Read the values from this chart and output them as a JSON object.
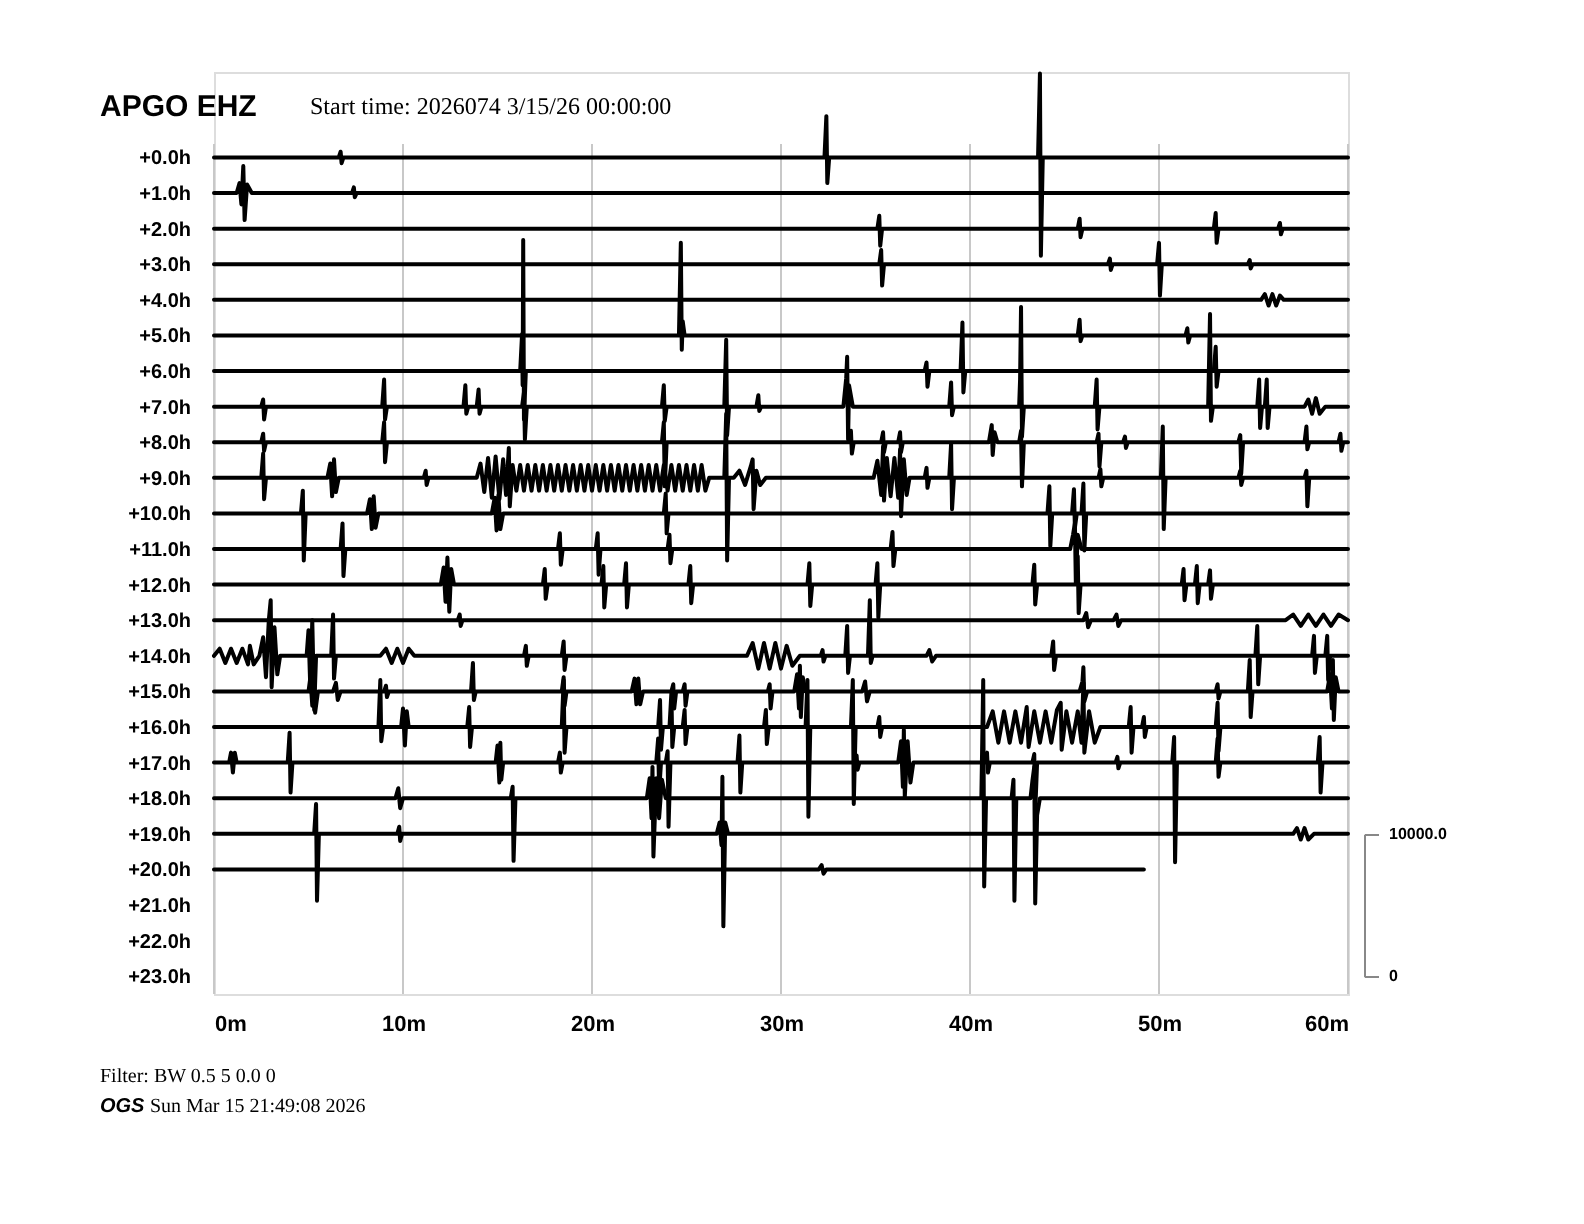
{
  "chart_data": {
    "type": "line",
    "title": "APGO EHZ",
    "subtitle": "Start time: 2026074  3/15/26 00:00:00",
    "annotations": [
      "Filter: BW 0.5 5 0.0 0",
      "OGS",
      "Sun Mar 15 21:49:08 2026"
    ],
    "xlim": [
      0,
      60
    ],
    "xticks": [
      {
        "value": 0,
        "label": "0m"
      },
      {
        "value": 10,
        "label": "10m"
      },
      {
        "value": 20,
        "label": "20m"
      },
      {
        "value": 30,
        "label": "30m"
      },
      {
        "value": 40,
        "label": "40m"
      },
      {
        "value": 50,
        "label": "50m"
      },
      {
        "value": 60,
        "label": "60m"
      }
    ],
    "ylim": [
      23.5,
      -2.4
    ],
    "yticks": [
      {
        "value": 0,
        "label": "+0.0h"
      },
      {
        "value": 1,
        "label": "+1.0h"
      },
      {
        "value": 2,
        "label": "+2.0h"
      },
      {
        "value": 3,
        "label": "+3.0h"
      },
      {
        "value": 4,
        "label": "+4.0h"
      },
      {
        "value": 5,
        "label": "+5.0h"
      },
      {
        "value": 6,
        "label": "+6.0h"
      },
      {
        "value": 7,
        "label": "+7.0h"
      },
      {
        "value": 8,
        "label": "+8.0h"
      },
      {
        "value": 9,
        "label": "+9.0h"
      },
      {
        "value": 10,
        "label": "+10.0h"
      },
      {
        "value": 11,
        "label": "+11.0h"
      },
      {
        "value": 12,
        "label": "+12.0h"
      },
      {
        "value": 13,
        "label": "+13.0h"
      },
      {
        "value": 14,
        "label": "+14.0h"
      },
      {
        "value": 15,
        "label": "+15.0h"
      },
      {
        "value": 16,
        "label": "+16.0h"
      },
      {
        "value": 17,
        "label": "+17.0h"
      },
      {
        "value": 18,
        "label": "+18.0h"
      },
      {
        "value": 19,
        "label": "+19.0h"
      },
      {
        "value": 20,
        "label": "+20.0h"
      },
      {
        "value": 21,
        "label": "+21.0h"
      },
      {
        "value": 22,
        "label": "+22.0h"
      },
      {
        "value": 23,
        "label": "+23.0h"
      }
    ],
    "y2lim": [
      -1250,
      63500
    ],
    "y2ticks": [
      0,
      {
        "value": 10000,
        "label": "10000.0"
      }
    ],
    "grid": "x",
    "series": [
      {
        "axis": "y2",
        "color": "#000000",
        "x": [
          0,
          6.6,
          6.7,
          6.75,
          6.85,
          32.3,
          32.4,
          32.45,
          32.55,
          43.6,
          43.7,
          43.75,
          43.85,
          60
        ],
        "values": [
          57500,
          57500,
          57900,
          57100,
          57500,
          57500,
          60400,
          55700,
          57500,
          57500,
          63400,
          50600,
          57500,
          57500
        ]
      },
      {
        "axis": "y2",
        "color": "#000000",
        "x": [
          0,
          1.2,
          1.35,
          1.45,
          1.55,
          1.62,
          1.75,
          2.0,
          7.3,
          7.4,
          7.45,
          7.55,
          60
        ],
        "values": [
          55000,
          55000,
          55700,
          54200,
          56900,
          53100,
          55600,
          55000,
          55000,
          55400,
          54700,
          55000,
          55000
        ]
      },
      {
        "axis": "y2",
        "color": "#000000",
        "x": [
          0,
          35.1,
          35.2,
          35.25,
          35.35,
          45.7,
          45.8,
          45.85,
          45.95,
          52.9,
          53.0,
          53.05,
          53.15,
          56.3,
          56.4,
          56.45,
          56.55,
          60
        ],
        "values": [
          52500,
          52500,
          53400,
          51300,
          52500,
          52500,
          53200,
          51900,
          52500,
          52500,
          53600,
          51500,
          52500,
          52500,
          52900,
          52100,
          52500,
          52500
        ]
      },
      {
        "axis": "y2",
        "color": "#000000",
        "x": [
          0,
          35.2,
          35.3,
          35.35,
          35.45,
          47.3,
          47.4,
          47.45,
          47.55,
          49.9,
          50.0,
          50.05,
          50.15,
          54.7,
          54.8,
          54.85,
          54.95,
          60
        ],
        "values": [
          50000,
          50000,
          51000,
          48500,
          50000,
          50000,
          50400,
          49600,
          50000,
          50000,
          51500,
          47800,
          50000,
          50000,
          50300,
          49700,
          50000,
          50000
        ]
      },
      {
        "axis": "y2",
        "color": "#000000",
        "x": [
          0,
          55.4,
          55.6,
          55.8,
          56.0,
          56.2,
          56.4,
          56.6,
          60
        ],
        "values": [
          47500,
          47500,
          47900,
          47100,
          47900,
          47100,
          47800,
          47500,
          47500
        ]
      },
      {
        "axis": "y2",
        "color": "#000000",
        "x": [
          0,
          24.6,
          24.7,
          24.75,
          24.8,
          24.9,
          45.7,
          45.8,
          45.85,
          45.95,
          51.4,
          51.5,
          51.55,
          51.65,
          60
        ],
        "values": [
          45000,
          45000,
          51500,
          44000,
          46000,
          45000,
          45000,
          46100,
          44600,
          45000,
          45000,
          45500,
          44500,
          45000,
          45000
        ]
      },
      {
        "axis": "y2",
        "color": "#000000",
        "x": [
          0,
          16.2,
          16.3,
          16.33,
          16.36,
          16.4,
          16.5,
          37.6,
          37.7,
          37.75,
          37.85,
          39.5,
          39.6,
          39.65,
          39.75,
          52.9,
          53.0,
          53.05,
          53.15,
          60
        ],
        "values": [
          42500,
          42500,
          45100,
          41500,
          51700,
          39100,
          42500,
          42500,
          43100,
          41400,
          42500,
          42500,
          45900,
          41000,
          42500,
          42500,
          44200,
          41400,
          42500,
          42500
        ]
      },
      {
        "axis": "y2",
        "color": "#000000",
        "x": [
          0,
          2.5,
          2.6,
          2.65,
          2.75,
          8.9,
          9.0,
          9.05,
          9.15,
          13.2,
          13.3,
          13.35,
          13.45,
          13.9,
          14.0,
          14.05,
          14.15,
          16.3,
          16.4,
          16.45,
          16.55,
          23.7,
          23.8,
          23.85,
          23.95,
          27.0,
          27.1,
          27.15,
          27.25,
          28.7,
          28.8,
          28.85,
          28.95,
          33.3,
          33.45,
          33.5,
          33.55,
          33.6,
          33.8,
          38.9,
          39.0,
          39.05,
          39.15,
          42.6,
          42.65,
          42.7,
          42.75,
          42.85,
          46.6,
          46.7,
          46.75,
          46.85,
          52.6,
          52.7,
          52.75,
          52.85,
          55.2,
          55.3,
          55.35,
          55.45,
          55.6,
          55.7,
          55.75,
          55.85,
          57.7,
          57.9,
          58.1,
          58.3,
          58.5,
          58.8,
          60
        ],
        "values": [
          40000,
          40000,
          40500,
          39100,
          40000,
          40000,
          41900,
          39100,
          40000,
          40000,
          41500,
          39500,
          40000,
          40000,
          41200,
          39500,
          40000,
          40000,
          41000,
          37700,
          40000,
          40000,
          41500,
          39000,
          40000,
          40000,
          44700,
          38000,
          40000,
          40000,
          40800,
          39700,
          40000,
          40000,
          42000,
          43500,
          37700,
          41500,
          40000,
          40000,
          41700,
          39400,
          40000,
          40000,
          41900,
          47000,
          37900,
          40000,
          40000,
          41900,
          38400,
          40000,
          40000,
          46500,
          39000,
          40000,
          40000,
          41900,
          38500,
          40000,
          40000,
          41900,
          38500,
          40000,
          40000,
          40500,
          39500,
          40600,
          39500,
          40000,
          40000
        ]
      },
      {
        "axis": "y2",
        "color": "#000000",
        "x": [
          0,
          2.5,
          2.6,
          2.65,
          2.75,
          8.9,
          9.0,
          9.05,
          9.15,
          23.7,
          23.8,
          23.85,
          23.95,
          33.6,
          33.7,
          33.75,
          33.85,
          35.3,
          35.4,
          35.45,
          35.55,
          36.2,
          36.3,
          36.35,
          36.45,
          41.0,
          41.15,
          41.2,
          41.3,
          41.45,
          42.6,
          42.7,
          42.75,
          42.85,
          46.7,
          46.8,
          46.85,
          46.95,
          48.1,
          48.2,
          48.25,
          48.35,
          54.2,
          54.3,
          54.35,
          54.45,
          57.7,
          57.8,
          57.85,
          57.95,
          59.5,
          59.6,
          59.65,
          59.75,
          60
        ],
        "values": [
          37500,
          37500,
          38100,
          36900,
          37500,
          37500,
          38900,
          36100,
          37500,
          37500,
          38900,
          34400,
          37500,
          37500,
          38300,
          36700,
          37500,
          37500,
          38200,
          36800,
          37500,
          37500,
          38200,
          36800,
          37500,
          37500,
          38700,
          36600,
          38200,
          37500,
          37500,
          38300,
          34400,
          37500,
          37500,
          38100,
          35800,
          37500,
          37500,
          37900,
          37100,
          37500,
          37500,
          38000,
          35300,
          37500,
          37500,
          38600,
          37000,
          37500,
          37500,
          38100,
          36900,
          37500,
          37500
        ]
      },
      {
        "axis": "y2",
        "color": "#000000",
        "x": [
          0,
          2.5,
          2.6,
          2.65,
          2.75,
          6.0,
          6.15,
          6.25,
          6.35,
          6.45,
          6.6,
          11.1,
          11.2,
          11.25,
          11.35,
          13.9,
          14.1,
          14.3,
          14.5,
          14.7,
          14.9,
          15.1,
          15.3,
          15.45,
          15.6,
          15.65,
          15.8,
          16.0,
          16.2,
          16.4,
          16.6,
          16.8,
          17.0,
          17.2,
          17.4,
          17.6,
          17.8,
          18.0,
          18.2,
          18.4,
          18.6,
          18.8,
          19.0,
          19.2,
          19.4,
          19.6,
          19.8,
          20.0,
          20.2,
          20.4,
          20.6,
          20.8,
          21.0,
          21.2,
          21.4,
          21.6,
          21.8,
          22.0,
          22.2,
          22.4,
          22.6,
          22.8,
          23.0,
          23.2,
          23.4,
          23.6,
          23.8,
          24.0,
          24.2,
          24.4,
          24.6,
          24.8,
          25.0,
          25.2,
          25.4,
          25.6,
          25.8,
          26.0,
          26.2,
          27.0,
          27.1,
          27.15,
          27.25,
          27.5,
          27.8,
          28.1,
          28.4,
          28.5,
          28.55,
          28.7,
          28.9,
          29.2,
          34.9,
          35.1,
          35.3,
          35.4,
          35.45,
          35.6,
          35.8,
          36.0,
          36.2,
          36.3,
          36.35,
          36.5,
          36.65,
          36.8,
          37.6,
          37.7,
          37.75,
          37.85,
          38.9,
          39.0,
          39.05,
          39.15,
          46.8,
          46.9,
          46.95,
          47.05,
          50.1,
          50.2,
          50.25,
          50.35,
          54.2,
          54.3,
          54.35,
          54.45,
          57.7,
          57.8,
          57.85,
          57.95,
          60
        ],
        "values": [
          35000,
          35000,
          36700,
          33500,
          35000,
          35000,
          36000,
          33700,
          36300,
          34000,
          35000,
          35000,
          35500,
          34500,
          35000,
          35000,
          36000,
          34000,
          36400,
          33600,
          36500,
          33500,
          36300,
          33800,
          37100,
          33000,
          35900,
          34100,
          35900,
          34100,
          35900,
          34100,
          35900,
          34100,
          35900,
          34100,
          35900,
          34100,
          35900,
          34100,
          35900,
          34100,
          35900,
          34100,
          35900,
          34100,
          35900,
          34100,
          35900,
          34100,
          35900,
          34100,
          35900,
          34100,
          35900,
          34100,
          35900,
          34100,
          35900,
          34100,
          35900,
          34100,
          35900,
          34100,
          35900,
          34100,
          35900,
          34100,
          35900,
          34100,
          35900,
          34100,
          35900,
          34100,
          35900,
          34100,
          35900,
          34100,
          35000,
          35000,
          39500,
          29200,
          35000,
          35000,
          35500,
          34500,
          35800,
          36300,
          32800,
          35500,
          34500,
          35000,
          35000,
          36200,
          33800,
          37200,
          33400,
          36400,
          33700,
          36400,
          33600,
          37000,
          32300,
          36300,
          33800,
          35000,
          35000,
          35700,
          34300,
          35000,
          35000,
          37400,
          32800,
          35000,
          35000,
          35600,
          34400,
          35000,
          35000,
          38600,
          31400,
          35000,
          35000,
          35500,
          34500,
          35000,
          35000,
          35500,
          33000,
          35000,
          35000
        ]
      },
      {
        "axis": "y2",
        "color": "#000000",
        "x": [
          0,
          4.6,
          4.7,
          4.75,
          4.85,
          8.1,
          8.25,
          8.35,
          8.45,
          8.55,
          8.7,
          14.7,
          14.85,
          14.95,
          15.05,
          15.15,
          15.3,
          23.8,
          23.9,
          23.95,
          24.05,
          44.1,
          44.2,
          44.25,
          44.35,
          45.4,
          45.5,
          45.55,
          45.65,
          45.9,
          46.0,
          46.05,
          46.15,
          60
        ],
        "values": [
          32500,
          32500,
          34100,
          29200,
          32500,
          32500,
          33500,
          31400,
          33700,
          31500,
          32500,
          32500,
          33600,
          31300,
          33800,
          31400,
          32500,
          32500,
          33900,
          31100,
          32500,
          32500,
          34400,
          30200,
          32500,
          32500,
          34200,
          31500,
          32500,
          32500,
          34600,
          29900,
          32500,
          32500
        ]
      },
      {
        "axis": "y2",
        "color": "#000000",
        "x": [
          0,
          6.7,
          6.8,
          6.85,
          6.95,
          18.2,
          18.3,
          18.35,
          18.45,
          20.2,
          20.3,
          20.35,
          20.45,
          24.0,
          24.1,
          24.15,
          24.25,
          35.8,
          35.9,
          35.95,
          36.05,
          45.3,
          45.45,
          45.55,
          45.6,
          45.7,
          45.9,
          60
        ],
        "values": [
          30000,
          30000,
          31800,
          28100,
          30000,
          30000,
          31100,
          28900,
          30000,
          30000,
          31100,
          28200,
          30000,
          30000,
          31000,
          29000,
          30000,
          30000,
          31200,
          28800,
          30000,
          30000,
          31000,
          31800,
          27600,
          31000,
          30000,
          30000
        ]
      },
      {
        "axis": "y2",
        "color": "#000000",
        "x": [
          0,
          12.0,
          12.15,
          12.25,
          12.35,
          12.45,
          12.55,
          12.7,
          17.4,
          17.5,
          17.55,
          17.65,
          20.5,
          20.6,
          20.65,
          20.75,
          21.7,
          21.8,
          21.85,
          21.95,
          25.1,
          25.2,
          25.25,
          25.35,
          31.4,
          31.5,
          31.55,
          31.65,
          35.0,
          35.1,
          35.15,
          35.25,
          43.3,
          43.4,
          43.45,
          43.55,
          45.6,
          45.7,
          45.75,
          45.85,
          51.2,
          51.3,
          51.35,
          51.45,
          51.9,
          52.0,
          52.05,
          52.15,
          52.6,
          52.7,
          52.75,
          52.85,
          60
        ],
        "values": [
          27500,
          27500,
          28700,
          26300,
          29400,
          25600,
          28600,
          27500,
          27500,
          28600,
          26500,
          27500,
          27500,
          28800,
          25900,
          27500,
          27500,
          29000,
          25900,
          27500,
          27500,
          28800,
          26200,
          27500,
          27500,
          29000,
          26000,
          27500,
          27500,
          29000,
          25200,
          27500,
          27500,
          28900,
          26100,
          27500,
          27500,
          29500,
          25500,
          27500,
          27500,
          28600,
          26400,
          27500,
          27500,
          28800,
          26200,
          27500,
          27500,
          28500,
          26500,
          27500,
          27500
        ]
      },
      {
        "axis": "y2",
        "color": "#000000",
        "x": [
          0,
          12.9,
          13.0,
          13.05,
          13.15,
          46.0,
          46.15,
          46.25,
          46.4,
          47.6,
          47.75,
          47.85,
          48.0,
          56.7,
          57.1,
          57.5,
          57.9,
          58.3,
          58.7,
          59.1,
          59.5,
          60
        ],
        "values": [
          25000,
          25000,
          25400,
          24600,
          25000,
          25000,
          25500,
          24500,
          25000,
          25000,
          25400,
          24600,
          25000,
          25000,
          25400,
          24600,
          25400,
          24600,
          25400,
          24600,
          25400,
          25000
        ]
      },
      {
        "axis": "y2",
        "color": "#000000",
        "x": [
          0,
          0.3,
          0.6,
          0.9,
          1.2,
          1.5,
          1.8,
          1.9,
          2.1,
          2.4,
          2.6,
          2.75,
          2.9,
          3.0,
          3.05,
          3.2,
          3.35,
          3.5,
          4.9,
          5.0,
          5.1,
          5.2,
          5.3,
          5.4,
          6.2,
          6.3,
          6.35,
          6.45,
          8.8,
          9.1,
          9.4,
          9.7,
          10.0,
          10.3,
          10.6,
          16.4,
          16.5,
          16.55,
          16.65,
          18.4,
          18.5,
          18.55,
          18.65,
          28.2,
          28.5,
          28.8,
          29.1,
          29.4,
          29.7,
          30.0,
          30.3,
          30.6,
          31.0,
          32.1,
          32.2,
          32.25,
          32.35,
          33.4,
          33.5,
          33.55,
          33.65,
          34.6,
          34.7,
          34.75,
          34.85,
          37.7,
          37.85,
          38.0,
          38.2,
          44.3,
          44.4,
          44.45,
          44.55,
          55.1,
          55.2,
          55.25,
          55.35,
          58.1,
          58.2,
          58.25,
          58.35,
          58.8,
          58.9,
          58.95,
          59.05,
          60
        ],
        "values": [
          22500,
          23000,
          22000,
          23000,
          22000,
          23000,
          21900,
          23200,
          21900,
          22500,
          23800,
          21000,
          25000,
          26400,
          20300,
          24500,
          21200,
          22500,
          22500,
          24300,
          20000,
          25000,
          18700,
          22500,
          22500,
          25400,
          20900,
          22500,
          22500,
          23000,
          22000,
          23000,
          22000,
          23000,
          22500,
          22500,
          23200,
          21800,
          22500,
          22500,
          23500,
          21500,
          22500,
          22500,
          23400,
          21600,
          23400,
          21600,
          23400,
          21600,
          23200,
          21800,
          22500,
          22500,
          22900,
          22100,
          22500,
          22500,
          24600,
          21300,
          22500,
          22500,
          26400,
          22000,
          22500,
          22500,
          22900,
          22100,
          22500,
          22500,
          23500,
          21500,
          22500,
          22500,
          24600,
          20500,
          22500,
          22500,
          23900,
          21300,
          22500,
          22500,
          23900,
          20800,
          22500,
          22500
        ]
      },
      {
        "axis": "y2",
        "color": "#000000",
        "x": [
          0,
          5.0,
          5.1,
          5.2,
          5.3,
          5.35,
          5.5,
          6.3,
          6.45,
          6.55,
          6.7,
          9.0,
          9.1,
          9.15,
          9.25,
          13.6,
          13.7,
          13.75,
          13.85,
          18.4,
          18.5,
          18.55,
          18.65,
          22.1,
          22.25,
          22.35,
          22.45,
          22.55,
          22.7,
          24.2,
          24.3,
          24.35,
          24.45,
          24.8,
          24.9,
          24.95,
          25.05,
          29.3,
          29.4,
          29.45,
          29.55,
          30.7,
          30.85,
          30.95,
          31.0,
          31.05,
          31.15,
          31.3,
          34.3,
          34.45,
          34.55,
          34.7,
          45.8,
          45.95,
          46.0,
          46.05,
          46.2,
          53.0,
          53.1,
          53.15,
          53.25,
          54.7,
          54.8,
          54.85,
          54.95,
          58.9,
          59.05,
          59.15,
          59.2,
          59.25,
          59.35,
          59.5,
          60
        ],
        "values": [
          20000,
          20000,
          21000,
          19000,
          21000,
          18500,
          20000,
          20000,
          20600,
          19400,
          20000,
          20000,
          20400,
          19600,
          20000,
          20000,
          22000,
          19400,
          20000,
          20000,
          21000,
          19000,
          20000,
          20000,
          20900,
          19100,
          20900,
          19100,
          20000,
          20000,
          20500,
          18800,
          20000,
          20000,
          20500,
          19000,
          20000,
          20000,
          20500,
          18800,
          20000,
          20000,
          21200,
          18800,
          21800,
          18200,
          21000,
          20000,
          20000,
          20700,
          19300,
          20000,
          20000,
          20700,
          21700,
          19300,
          20000,
          20000,
          20500,
          19500,
          20000,
          20000,
          22200,
          18200,
          20000,
          20000,
          21200,
          18800,
          22200,
          18000,
          21000,
          20000,
          20000
        ]
      },
      {
        "axis": "y2",
        "color": "#000000",
        "x": [
          0,
          8.7,
          8.8,
          8.85,
          8.95,
          9.9,
          10.0,
          10.1,
          10.2,
          10.3,
          13.4,
          13.5,
          13.55,
          13.65,
          18.4,
          18.5,
          18.55,
          18.65,
          23.5,
          23.6,
          23.65,
          23.75,
          24.1,
          24.2,
          24.25,
          24.35,
          24.8,
          24.9,
          24.95,
          25.05,
          29.1,
          29.2,
          29.25,
          29.35,
          31.3,
          31.4,
          31.45,
          31.55,
          33.7,
          33.8,
          33.85,
          33.95,
          35.1,
          35.2,
          35.25,
          35.35,
          40.9,
          41.2,
          41.5,
          41.8,
          42.1,
          42.4,
          42.7,
          43.0,
          43.1,
          43.4,
          43.7,
          44.0,
          44.3,
          44.6,
          44.8,
          44.85,
          45.1,
          45.4,
          45.7,
          45.9,
          46.0,
          46.05,
          46.3,
          46.6,
          46.9,
          48.4,
          48.5,
          48.55,
          48.65,
          49.1,
          49.2,
          49.25,
          49.35,
          53.0,
          53.1,
          53.15,
          53.25,
          60
        ],
        "values": [
          17500,
          17500,
          20800,
          16500,
          17500,
          17500,
          18800,
          16200,
          18600,
          17500,
          17500,
          18900,
          16100,
          17500,
          17500,
          20800,
          15700,
          17500,
          17500,
          19400,
          15900,
          17500,
          17500,
          19900,
          16100,
          17500,
          17500,
          18700,
          16300,
          17500,
          17500,
          18700,
          16300,
          17500,
          17500,
          20800,
          11200,
          17500,
          17500,
          20800,
          12100,
          17500,
          17500,
          18200,
          16800,
          17500,
          17500,
          18600,
          16400,
          18600,
          16400,
          18600,
          16400,
          18900,
          16100,
          18600,
          16400,
          18600,
          16400,
          18700,
          19200,
          15900,
          18600,
          16400,
          18600,
          16400,
          20600,
          15700,
          18600,
          16400,
          17500,
          17500,
          18900,
          15700,
          17500,
          17500,
          18200,
          16800,
          17500,
          17500,
          19200,
          15800,
          17500,
          17500
        ]
      },
      {
        "axis": "y2",
        "color": "#000000",
        "x": [
          0,
          0.8,
          0.9,
          1.0,
          1.1,
          1.2,
          3.9,
          4.0,
          4.05,
          4.15,
          14.9,
          15.0,
          15.1,
          15.15,
          15.2,
          15.3,
          18.2,
          18.3,
          18.35,
          18.45,
          23.4,
          23.5,
          23.55,
          23.65,
          23.9,
          24.0,
          24.05,
          24.15,
          27.7,
          27.8,
          27.85,
          27.95,
          33.9,
          34.0,
          34.05,
          34.15,
          36.2,
          36.35,
          36.45,
          36.5,
          36.55,
          36.7,
          36.85,
          37.0,
          40.8,
          40.9,
          40.95,
          41.05,
          43.3,
          43.4,
          43.45,
          43.55,
          47.7,
          47.8,
          47.85,
          47.95,
          50.7,
          50.8,
          50.85,
          50.95,
          53.0,
          53.1,
          53.15,
          53.25,
          58.4,
          58.5,
          58.55,
          58.65,
          60
        ],
        "values": [
          15000,
          15000,
          15700,
          14300,
          15700,
          15000,
          15000,
          17100,
          12900,
          15000,
          15000,
          16200,
          13600,
          16400,
          13800,
          15000,
          15000,
          15700,
          14300,
          15000,
          15000,
          16700,
          12900,
          15000,
          15000,
          15800,
          10500,
          15000,
          15000,
          16900,
          12900,
          15000,
          15000,
          15500,
          14500,
          15000,
          15000,
          16500,
          13300,
          17300,
          12600,
          16500,
          13600,
          15000,
          15000,
          15700,
          14300,
          15000,
          15000,
          15600,
          11500,
          15000,
          15000,
          15400,
          14600,
          15000,
          15000,
          16800,
          8000,
          15000,
          15000,
          16700,
          14000,
          15000,
          15000,
          16800,
          12900,
          15000,
          15000
        ]
      },
      {
        "axis": "y2",
        "color": "#000000",
        "x": [
          0,
          9.6,
          9.75,
          9.85,
          10.0,
          15.7,
          15.8,
          15.85,
          15.95,
          22.9,
          23.05,
          23.15,
          23.2,
          23.25,
          23.4,
          23.55,
          23.7,
          23.9,
          40.6,
          40.7,
          40.75,
          40.85,
          42.2,
          42.3,
          42.35,
          42.45,
          43.2,
          43.3,
          43.4,
          43.45,
          43.55,
          43.7,
          60
        ],
        "values": [
          12500,
          12500,
          13200,
          11800,
          12500,
          12500,
          13300,
          8100,
          12500,
          12500,
          13900,
          11100,
          14700,
          8400,
          13900,
          11100,
          13800,
          12500,
          12500,
          20800,
          6300,
          12500,
          12500,
          13800,
          5300,
          12500,
          12500,
          13700,
          14700,
          5100,
          11300,
          12500,
          12500
        ]
      },
      {
        "axis": "y2",
        "color": "#000000",
        "x": [
          0,
          5.3,
          5.4,
          5.45,
          5.55,
          9.7,
          9.8,
          9.85,
          9.95,
          26.6,
          26.75,
          26.85,
          26.9,
          26.95,
          27.05,
          27.2,
          57.1,
          57.3,
          57.5,
          57.7,
          57.9,
          58.2,
          60
        ],
        "values": [
          10000,
          10000,
          12100,
          5300,
          10000,
          10000,
          10500,
          9500,
          10000,
          10000,
          10800,
          9200,
          14000,
          3500,
          10800,
          10000,
          10000,
          10400,
          9600,
          10400,
          9600,
          10000,
          10000
        ]
      },
      {
        "axis": "y2",
        "color": "#000000",
        "x": [
          0,
          32.0,
          32.15,
          32.25,
          32.4,
          49.2
        ],
        "values": [
          7500,
          7500,
          7800,
          7200,
          7500,
          7500
        ]
      }
    ]
  }
}
